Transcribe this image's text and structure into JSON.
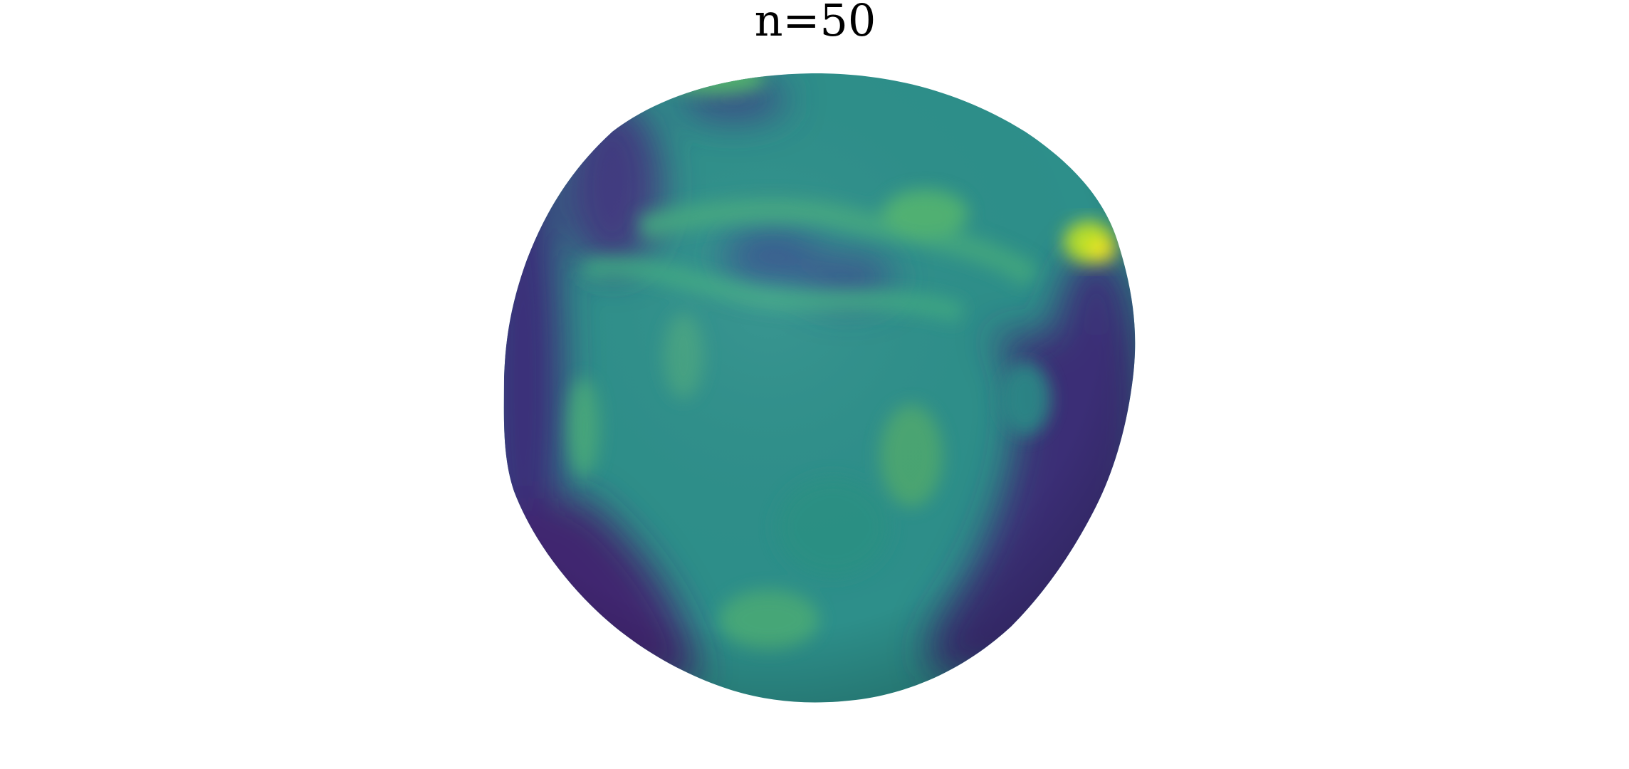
{
  "title": "n=50",
  "colormap": "viridis",
  "colors": {
    "low": "#440154",
    "low_mid": "#3b528b",
    "mid": "#21918c",
    "high_mid": "#5ec962",
    "high": "#fde725"
  }
}
